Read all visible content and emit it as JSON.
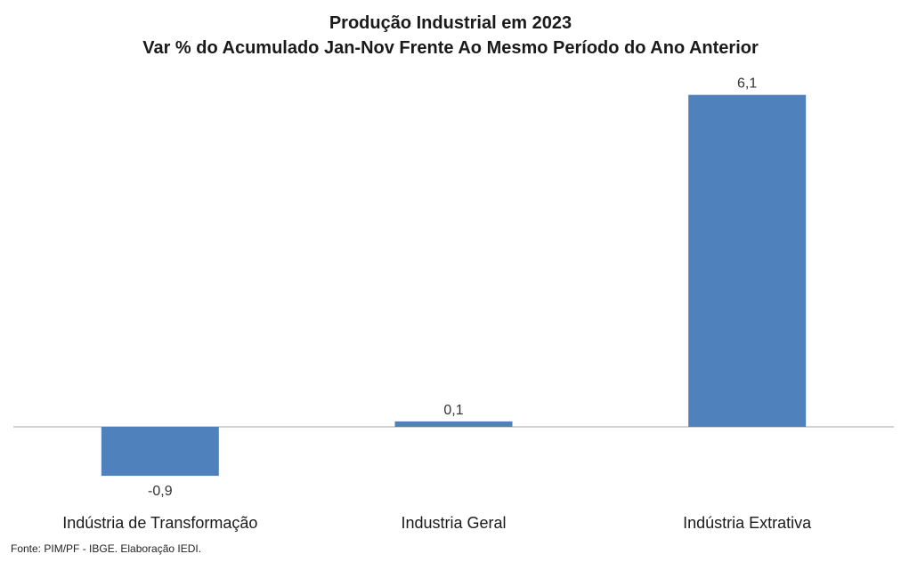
{
  "chart_data": {
    "type": "bar",
    "title": "Produção Industrial em 2023",
    "subtitle": "Var % do Acumulado Jan-Nov Frente Ao Mesmo Período do Ano Anterior",
    "categories": [
      "Indústria de Transformação",
      "Industria Geral",
      "Indústria Extrativa"
    ],
    "values": [
      -0.9,
      0.1,
      6.1
    ],
    "data_labels": [
      "-0,9",
      "0,1",
      "6,1"
    ],
    "bar_color": "#4f81bd",
    "axis_color": "#a6a6a6",
    "ylim": [
      -1.3,
      6.5
    ],
    "grid": false,
    "legend": "none"
  },
  "source": "Fonte: PIM/PF - IBGE. Elaboração IEDI."
}
